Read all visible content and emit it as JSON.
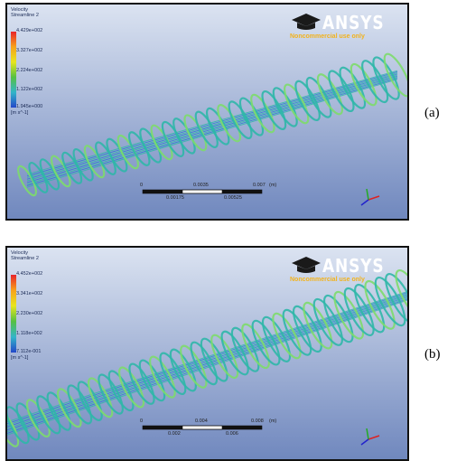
{
  "figure": {
    "panels": [
      {
        "legend_title": "Velocity\nStreamline 2",
        "legend_values": [
          "4.429e+002",
          "3.327e+002",
          "2.224e+002",
          "1.122e+002",
          "1.945e+000"
        ],
        "legend_unit": "[m s^-1]",
        "logo_brand_main": "ANSYS",
        "logo_note": "Noncommercial use only",
        "scale_top_labels": [
          "0",
          "0.0035",
          "0.007",
          "(m)"
        ],
        "scale_bottom_labels": [
          "0.00175",
          "0.00525"
        ],
        "caption": "(a)"
      },
      {
        "legend_title": "Velocity\nStreamline 2",
        "legend_values": [
          "4.452e+002",
          "3.341e+002",
          "2.230e+002",
          "1.118e+002",
          "7.112e-001"
        ],
        "legend_unit": "[m s^-1]",
        "logo_brand_main": "ANSYS",
        "logo_note": "Noncommercial use only",
        "scale_top_labels": [
          "0",
          "0.004",
          "0.008",
          "(m)"
        ],
        "scale_bottom_labels": [
          "0.002",
          "0.006"
        ],
        "caption": "(b)"
      }
    ],
    "colors": {
      "legend_gradient": [
        "#e8232a",
        "#f7a21b",
        "#e7e51f",
        "#56c043",
        "#33b5c9",
        "#2347c9"
      ],
      "streamline_main": "#2fb7a9",
      "streamline_highlight": "#7ddc6b",
      "streamline_core": "#2d78d0",
      "background_top": "#d9e1f0",
      "background_bottom": "#6f86bd"
    }
  }
}
